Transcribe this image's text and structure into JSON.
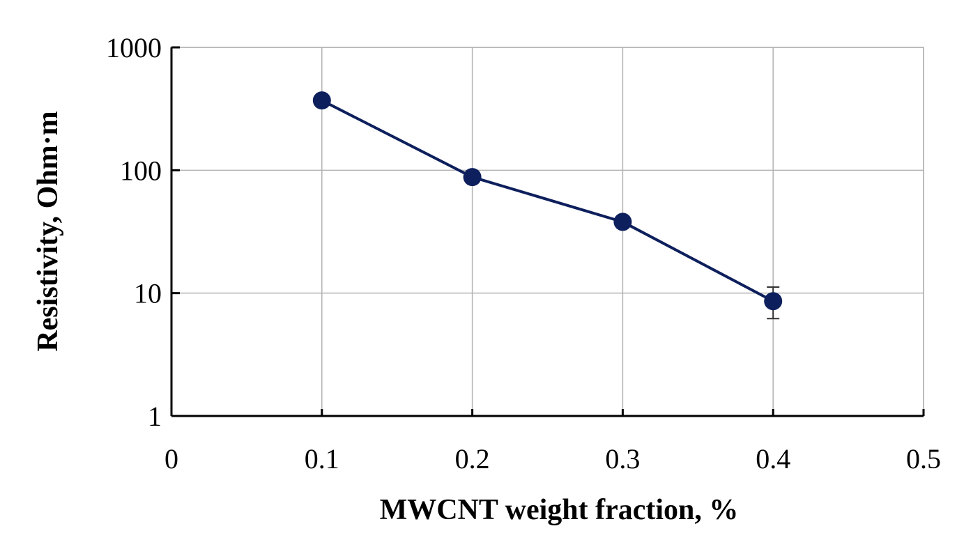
{
  "chart_data": {
    "type": "line",
    "title": "",
    "xlabel": "MWCNT weight fraction, %",
    "ylabel": "Resistivity, Ohm·m",
    "xlim": [
      0,
      0.5
    ],
    "ylim": [
      1,
      1000
    ],
    "yscale": "log",
    "grid": true,
    "x_ticks": [
      0,
      0.1,
      0.2,
      0.3,
      0.4,
      0.5
    ],
    "x_tick_labels": [
      "0",
      "0.1",
      "0.2",
      "0.3",
      "0.4",
      "0.5"
    ],
    "y_ticks": [
      1,
      10,
      100,
      1000
    ],
    "y_tick_labels": [
      "1",
      "10",
      "100",
      "1000"
    ],
    "series": [
      {
        "name": "Resistivity",
        "color": "#0d1f5c",
        "x": [
          0.1,
          0.2,
          0.3,
          0.4
        ],
        "y": [
          370,
          88,
          38,
          8.6
        ],
        "error_low": [
          370,
          88,
          35,
          6.2
        ],
        "error_high": [
          370,
          88,
          41,
          11.2
        ]
      }
    ]
  }
}
